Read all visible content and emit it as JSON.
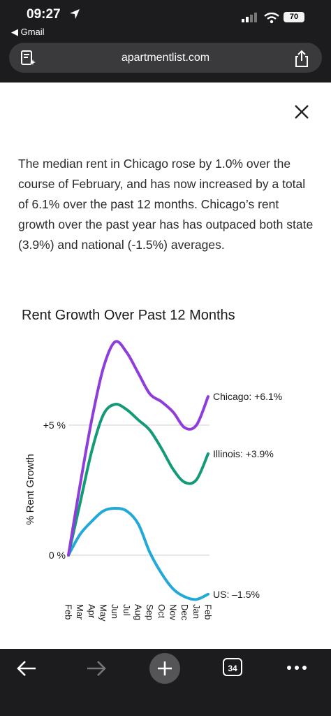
{
  "status_bar": {
    "time": "09:27",
    "back_app": "◀ Gmail",
    "battery": "70"
  },
  "browser": {
    "url": "apartmentlist.com",
    "tabs_count": "34"
  },
  "article": {
    "paragraph": "The median rent in Chicago rose by 1.0% over the course of February, and has now increased by a total of 6.1% over the past 12 months. Chicago’s rent growth over the past year has has outpaced both state (3.9%) and national (-1.5%) averages."
  },
  "chart_data": {
    "type": "line",
    "title": "Rent Growth Over Past 12 Months",
    "ylabel": "% Rent Growth",
    "y_ticks": [
      "+5 %",
      "0 %"
    ],
    "categories": [
      "Feb",
      "Mar",
      "Apr",
      "May",
      "Jun",
      "Jul",
      "Aug",
      "Sep",
      "Oct",
      "Nov",
      "Dec",
      "Jan",
      "Feb"
    ],
    "ylim": [
      -1.8,
      8.4
    ],
    "series": [
      {
        "name": "Chicago",
        "label": "Chicago: +6.1%",
        "color": "#8e3ddc",
        "values": [
          0,
          2.7,
          5.2,
          7.2,
          8.2,
          7.8,
          7.0,
          6.2,
          5.9,
          5.5,
          4.9,
          5.0,
          6.1
        ]
      },
      {
        "name": "Illinois",
        "label": "Illinois: +3.9%",
        "color": "#149a78",
        "values": [
          0,
          2.0,
          4.0,
          5.4,
          5.8,
          5.6,
          5.2,
          4.8,
          4.1,
          3.3,
          2.8,
          2.9,
          3.9
        ]
      },
      {
        "name": "US",
        "label": "US: –1.5%",
        "color": "#22a8d9",
        "values": [
          0,
          0.8,
          1.3,
          1.7,
          1.8,
          1.7,
          1.2,
          0.1,
          -0.7,
          -1.3,
          -1.6,
          -1.7,
          -1.5
        ]
      }
    ]
  }
}
